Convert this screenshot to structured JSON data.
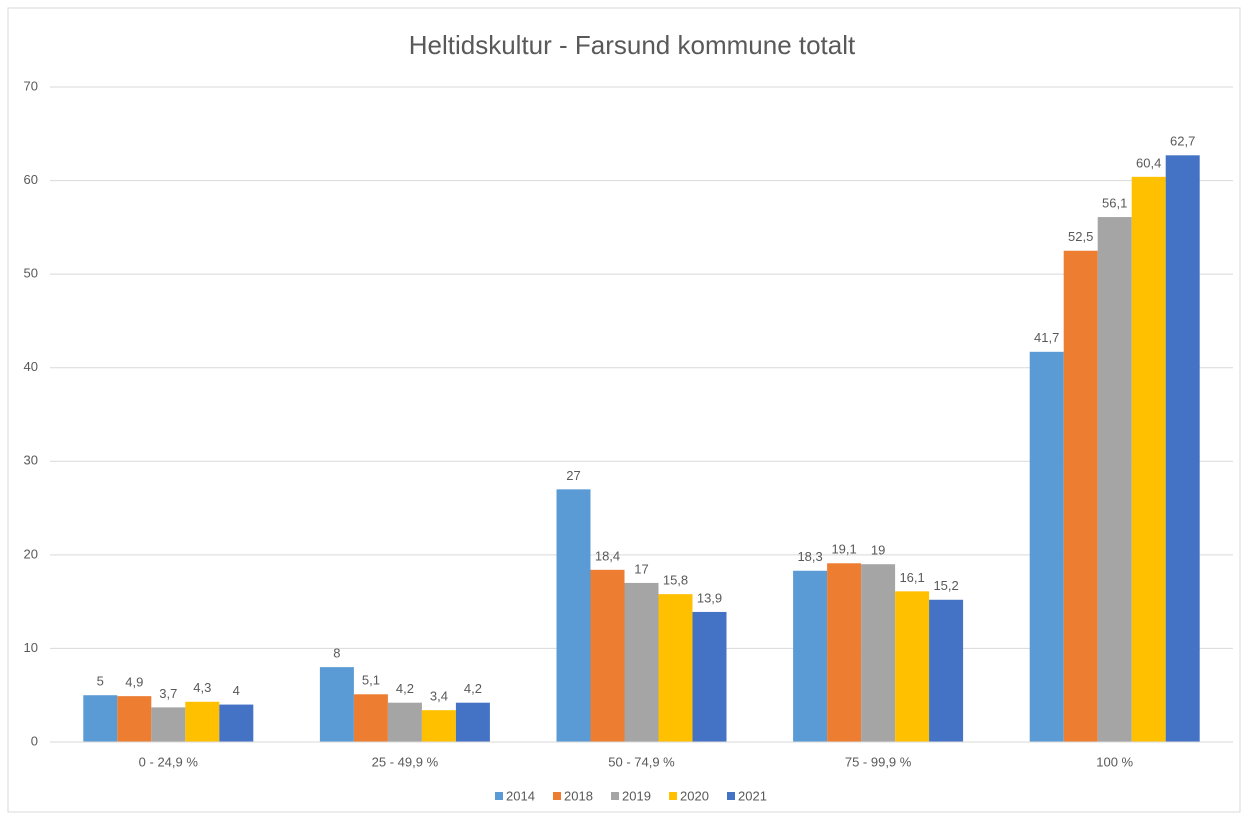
{
  "chart_data": {
    "type": "bar",
    "title": "Heltidskultur - Farsund kommune totalt",
    "categories": [
      "0 - 24,9 %",
      "25 - 49,9 %",
      "50 - 74,9 %",
      "75 - 99,9 %",
      "100 %"
    ],
    "series": [
      {
        "name": "2014",
        "color": "#5b9bd5",
        "values": [
          5,
          8,
          27,
          18.3,
          41.7
        ],
        "value_labels": [
          "5",
          "8",
          "27",
          "18,3",
          "41,7"
        ]
      },
      {
        "name": "2018",
        "color": "#ed7d31",
        "values": [
          4.9,
          5.1,
          18.4,
          19.1,
          52.5
        ],
        "value_labels": [
          "4,9",
          "5,1",
          "18,4",
          "19,1",
          "52,5"
        ]
      },
      {
        "name": "2019",
        "color": "#a5a5a5",
        "values": [
          3.7,
          4.2,
          17,
          19,
          56.1
        ],
        "value_labels": [
          "3,7",
          "4,2",
          "17",
          "19",
          "56,1"
        ]
      },
      {
        "name": "2020",
        "color": "#ffc000",
        "values": [
          4.3,
          3.4,
          15.8,
          16.1,
          60.4
        ],
        "value_labels": [
          "4,3",
          "3,4",
          "15,8",
          "16,1",
          "60,4"
        ]
      },
      {
        "name": "2021",
        "color": "#4472c4",
        "values": [
          4,
          4.2,
          13.9,
          15.2,
          62.7
        ],
        "value_labels": [
          "4",
          "4,2",
          "13,9",
          "15,2",
          "62,7"
        ]
      }
    ],
    "ylim": [
      0,
      70
    ],
    "yticks": [
      0,
      10,
      20,
      30,
      40,
      50,
      60,
      70
    ],
    "grid": true,
    "legend": "bottom"
  }
}
